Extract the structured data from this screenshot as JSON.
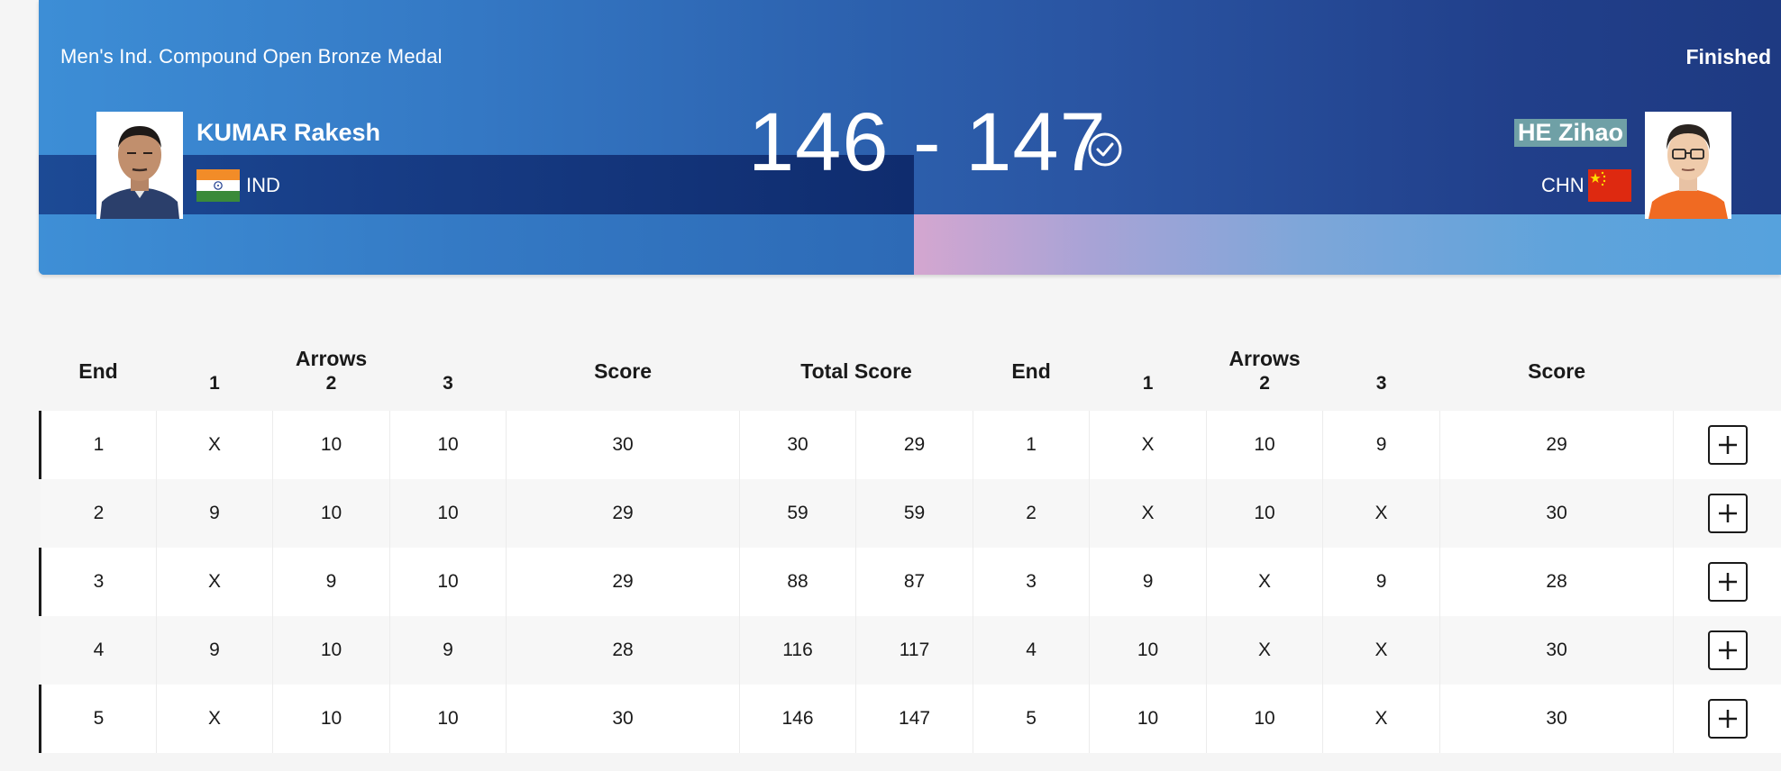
{
  "header": {
    "event_title": "Men's Ind. Compound Open Bronze Medal",
    "status": "Finished",
    "score_text": "146 - 147"
  },
  "athletes": {
    "left": {
      "name": "KUMAR Rakesh",
      "noc": "IND",
      "flag": "india-flag-icon"
    },
    "right": {
      "name": "HE Zihao",
      "noc": "CHN",
      "flag": "china-flag-icon",
      "winner": true
    }
  },
  "table": {
    "headers": {
      "end": "End",
      "arrows": "Arrows",
      "arrow_numbers": [
        "1",
        "2",
        "3"
      ],
      "score": "Score",
      "total_score": "Total Score"
    },
    "rows": [
      {
        "end": "1",
        "left_arrows": [
          "X",
          "10",
          "10"
        ],
        "left_score": "30",
        "left_total": "30",
        "right_total": "29",
        "right_end": "1",
        "right_arrows": [
          "X",
          "10",
          "9"
        ],
        "right_score": "29"
      },
      {
        "end": "2",
        "left_arrows": [
          "9",
          "10",
          "10"
        ],
        "left_score": "29",
        "left_total": "59",
        "right_total": "59",
        "right_end": "2",
        "right_arrows": [
          "X",
          "10",
          "X"
        ],
        "right_score": "30"
      },
      {
        "end": "3",
        "left_arrows": [
          "X",
          "9",
          "10"
        ],
        "left_score": "29",
        "left_total": "88",
        "right_total": "87",
        "right_end": "3",
        "right_arrows": [
          "9",
          "X",
          "9"
        ],
        "right_score": "28"
      },
      {
        "end": "4",
        "left_arrows": [
          "9",
          "10",
          "9"
        ],
        "left_score": "28",
        "left_total": "116",
        "right_total": "117",
        "right_end": "4",
        "right_arrows": [
          "10",
          "X",
          "X"
        ],
        "right_score": "30"
      },
      {
        "end": "5",
        "left_arrows": [
          "X",
          "10",
          "10"
        ],
        "left_score": "30",
        "left_total": "146",
        "right_total": "147",
        "right_end": "5",
        "right_arrows": [
          "10",
          "10",
          "X"
        ],
        "right_score": "30"
      }
    ]
  },
  "colors": {
    "banner_blue": "#2d63b0",
    "winner_highlight": "#6fa0a6",
    "text_dark": "#1a1a1a"
  },
  "icons": {
    "expand": "plus-icon",
    "winner": "check-circle-icon"
  }
}
